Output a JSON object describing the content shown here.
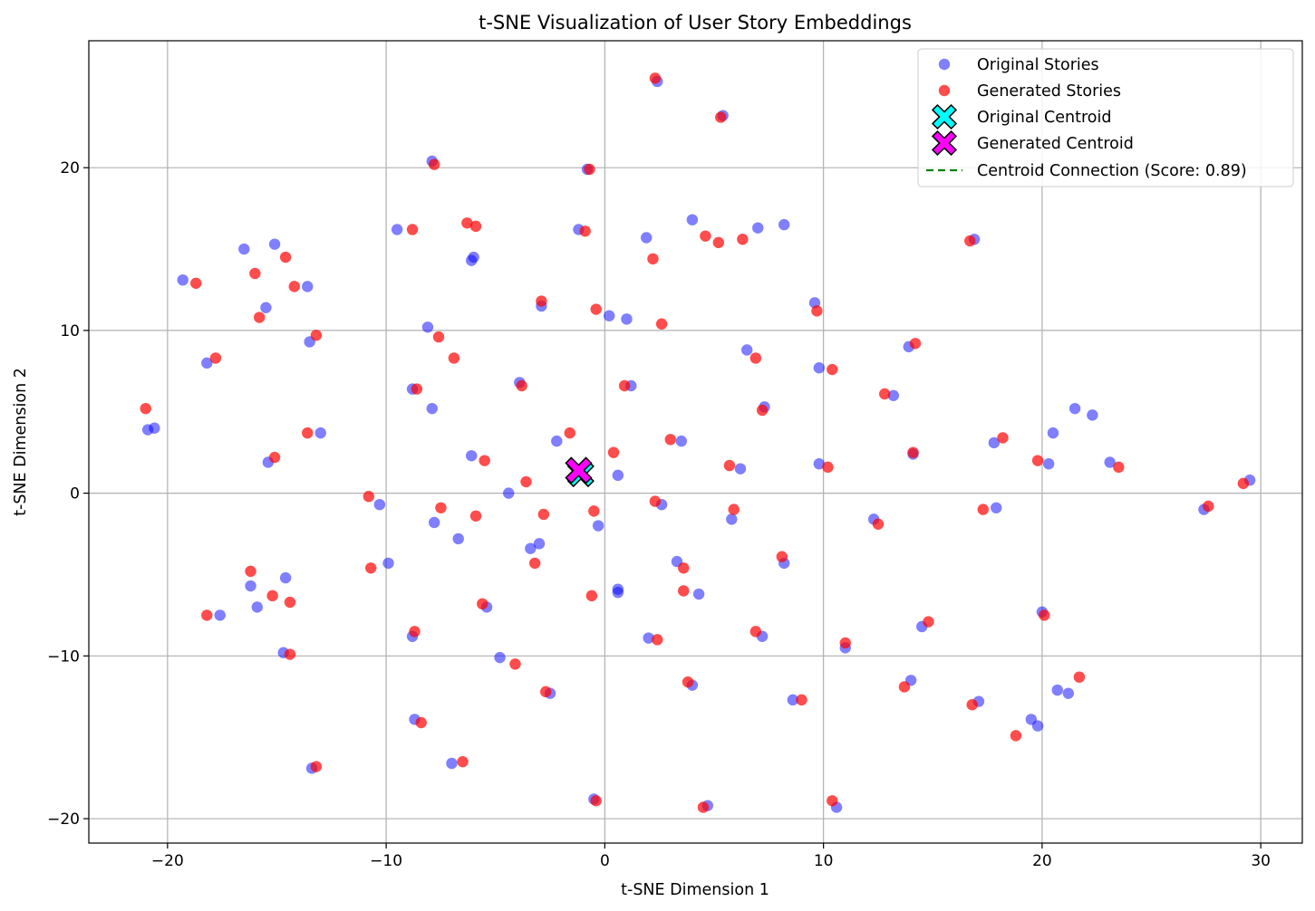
{
  "chart_data": {
    "type": "scatter",
    "title": "t-SNE Visualization of User Story Embeddings",
    "xlabel": "t-SNE Dimension 1",
    "ylabel": "t-SNE Dimension 2",
    "xlim": [
      -23.6,
      31.9
    ],
    "ylim": [
      -21.5,
      27.8
    ],
    "x_ticks": [
      -20,
      -10,
      0,
      10,
      20,
      30
    ],
    "y_ticks": [
      -20,
      -10,
      0,
      10,
      20
    ],
    "x_tick_labels": [
      "−20",
      "−10",
      "0",
      "10",
      "20",
      "30"
    ],
    "y_tick_labels": [
      "−20",
      "−10",
      "0",
      "10",
      "20"
    ],
    "grid": true,
    "legend_placement": "upper right",
    "series": [
      {
        "name": "Original Stories",
        "color": "#0000ff",
        "alpha": 0.5,
        "points": [
          [
            2.4,
            25.3
          ],
          [
            5.4,
            23.2
          ],
          [
            -7.9,
            20.4
          ],
          [
            -0.8,
            19.9
          ],
          [
            -9.5,
            16.2
          ],
          [
            -1.2,
            16.2
          ],
          [
            4.0,
            16.8
          ],
          [
            7.0,
            16.3
          ],
          [
            8.2,
            16.5
          ],
          [
            1.9,
            15.7
          ],
          [
            -6.0,
            14.5
          ],
          [
            -6.1,
            14.3
          ],
          [
            16.9,
            15.6
          ],
          [
            -16.5,
            15.0
          ],
          [
            -15.1,
            15.3
          ],
          [
            -19.3,
            13.1
          ],
          [
            -13.6,
            12.7
          ],
          [
            -15.5,
            11.4
          ],
          [
            -2.9,
            11.5
          ],
          [
            0.2,
            10.9
          ],
          [
            1.0,
            10.7
          ],
          [
            9.6,
            11.7
          ],
          [
            -8.1,
            10.2
          ],
          [
            -13.5,
            9.3
          ],
          [
            6.5,
            8.8
          ],
          [
            13.9,
            9.0
          ],
          [
            -18.2,
            8.0
          ],
          [
            9.8,
            7.7
          ],
          [
            -3.9,
            6.8
          ],
          [
            1.2,
            6.6
          ],
          [
            -8.8,
            6.4
          ],
          [
            -7.9,
            5.2
          ],
          [
            7.3,
            5.3
          ],
          [
            13.2,
            6.0
          ],
          [
            21.5,
            5.2
          ],
          [
            22.3,
            4.8
          ],
          [
            -20.6,
            4.0
          ],
          [
            -20.9,
            3.9
          ],
          [
            -13.0,
            3.7
          ],
          [
            20.5,
            3.7
          ],
          [
            17.8,
            3.1
          ],
          [
            3.5,
            3.2
          ],
          [
            -2.2,
            3.2
          ],
          [
            -6.1,
            2.3
          ],
          [
            -15.4,
            1.9
          ],
          [
            14.1,
            2.4
          ],
          [
            23.1,
            1.9
          ],
          [
            29.5,
            0.8
          ],
          [
            9.8,
            1.8
          ],
          [
            20.3,
            1.8
          ],
          [
            6.2,
            1.5
          ],
          [
            0.6,
            1.1
          ],
          [
            -4.4,
            0.0
          ],
          [
            -10.3,
            -0.7
          ],
          [
            2.6,
            -0.7
          ],
          [
            17.9,
            -0.9
          ],
          [
            27.4,
            -1.0
          ],
          [
            12.3,
            -1.6
          ],
          [
            5.8,
            -1.6
          ],
          [
            -7.8,
            -1.8
          ],
          [
            -0.3,
            -2.0
          ],
          [
            -6.7,
            -2.8
          ],
          [
            -3.4,
            -3.4
          ],
          [
            -3.0,
            -3.1
          ],
          [
            3.3,
            -4.2
          ],
          [
            8.2,
            -4.3
          ],
          [
            -9.9,
            -4.3
          ],
          [
            -16.2,
            -5.7
          ],
          [
            -14.6,
            -5.2
          ],
          [
            -15.9,
            -7.0
          ],
          [
            0.6,
            -5.9
          ],
          [
            0.6,
            -6.1
          ],
          [
            4.3,
            -6.2
          ],
          [
            -5.4,
            -7.0
          ],
          [
            -17.6,
            -7.5
          ],
          [
            20.0,
            -7.3
          ],
          [
            14.5,
            -8.2
          ],
          [
            7.2,
            -8.8
          ],
          [
            -8.8,
            -8.8
          ],
          [
            2.0,
            -8.9
          ],
          [
            11.0,
            -9.5
          ],
          [
            -14.7,
            -9.8
          ],
          [
            -4.8,
            -10.1
          ],
          [
            14.0,
            -11.5
          ],
          [
            4.0,
            -11.8
          ],
          [
            20.7,
            -12.1
          ],
          [
            21.2,
            -12.3
          ],
          [
            -2.5,
            -12.3
          ],
          [
            8.6,
            -12.7
          ],
          [
            17.1,
            -12.8
          ],
          [
            -8.7,
            -13.9
          ],
          [
            19.5,
            -13.9
          ],
          [
            19.8,
            -14.3
          ],
          [
            -7.0,
            -16.6
          ],
          [
            -13.4,
            -16.9
          ],
          [
            -0.5,
            -18.8
          ],
          [
            4.7,
            -19.2
          ],
          [
            10.6,
            -19.3
          ]
        ]
      },
      {
        "name": "Generated Stories",
        "color": "#ff0000",
        "alpha": 0.7,
        "points": [
          [
            2.3,
            25.5
          ],
          [
            5.3,
            23.1
          ],
          [
            -7.8,
            20.2
          ],
          [
            -0.7,
            19.9
          ],
          [
            -8.8,
            16.2
          ],
          [
            -0.9,
            16.1
          ],
          [
            -6.3,
            16.6
          ],
          [
            -5.9,
            16.4
          ],
          [
            4.6,
            15.8
          ],
          [
            5.2,
            15.4
          ],
          [
            6.3,
            15.6
          ],
          [
            16.7,
            15.5
          ],
          [
            2.2,
            14.4
          ],
          [
            -16.0,
            13.5
          ],
          [
            -14.6,
            14.5
          ],
          [
            -18.7,
            12.9
          ],
          [
            -14.2,
            12.7
          ],
          [
            -15.8,
            10.8
          ],
          [
            -2.9,
            11.8
          ],
          [
            -0.4,
            11.3
          ],
          [
            2.6,
            10.4
          ],
          [
            9.7,
            11.2
          ],
          [
            -7.6,
            9.6
          ],
          [
            -13.2,
            9.7
          ],
          [
            -17.8,
            8.3
          ],
          [
            -6.9,
            8.3
          ],
          [
            6.9,
            8.3
          ],
          [
            14.2,
            9.2
          ],
          [
            10.4,
            7.6
          ],
          [
            -3.8,
            6.6
          ],
          [
            0.9,
            6.6
          ],
          [
            -8.6,
            6.4
          ],
          [
            7.2,
            5.1
          ],
          [
            12.8,
            6.1
          ],
          [
            -21.0,
            5.2
          ],
          [
            -13.6,
            3.7
          ],
          [
            -1.6,
            3.7
          ],
          [
            3.0,
            3.3
          ],
          [
            18.2,
            3.4
          ],
          [
            0.4,
            2.5
          ],
          [
            -15.1,
            2.2
          ],
          [
            -5.5,
            2.0
          ],
          [
            14.1,
            2.5
          ],
          [
            19.8,
            2.0
          ],
          [
            23.5,
            1.6
          ],
          [
            29.2,
            0.6
          ],
          [
            5.7,
            1.7
          ],
          [
            10.2,
            1.6
          ],
          [
            -3.6,
            0.7
          ],
          [
            -10.8,
            -0.2
          ],
          [
            2.3,
            -0.5
          ],
          [
            -7.5,
            -0.9
          ],
          [
            5.9,
            -1.0
          ],
          [
            17.3,
            -1.0
          ],
          [
            27.6,
            -0.8
          ],
          [
            -0.5,
            -1.1
          ],
          [
            -5.9,
            -1.4
          ],
          [
            -2.8,
            -1.3
          ],
          [
            12.5,
            -1.9
          ],
          [
            -3.2,
            -4.3
          ],
          [
            8.1,
            -3.9
          ],
          [
            3.6,
            -4.6
          ],
          [
            -10.7,
            -4.6
          ],
          [
            -16.2,
            -4.8
          ],
          [
            3.6,
            -6.0
          ],
          [
            -0.6,
            -6.3
          ],
          [
            -15.2,
            -6.3
          ],
          [
            -14.4,
            -6.7
          ],
          [
            -5.6,
            -6.8
          ],
          [
            -18.2,
            -7.5
          ],
          [
            20.1,
            -7.5
          ],
          [
            14.8,
            -7.9
          ],
          [
            6.9,
            -8.5
          ],
          [
            -8.7,
            -8.5
          ],
          [
            2.4,
            -9.0
          ],
          [
            11.0,
            -9.2
          ],
          [
            -14.4,
            -9.9
          ],
          [
            -4.1,
            -10.5
          ],
          [
            3.8,
            -11.6
          ],
          [
            13.7,
            -11.9
          ],
          [
            21.7,
            -11.3
          ],
          [
            -2.7,
            -12.2
          ],
          [
            9.0,
            -12.7
          ],
          [
            16.8,
            -13.0
          ],
          [
            -8.4,
            -14.1
          ],
          [
            18.8,
            -14.9
          ],
          [
            -6.5,
            -16.5
          ],
          [
            -13.2,
            -16.8
          ],
          [
            -0.4,
            -18.9
          ],
          [
            4.5,
            -19.3
          ],
          [
            10.4,
            -18.9
          ]
        ]
      }
    ],
    "centroids": [
      {
        "name": "Original Centroid",
        "x": -1.1,
        "y": 1.2,
        "color": "#00ffff",
        "marker": "X"
      },
      {
        "name": "Generated Centroid",
        "x": -1.2,
        "y": 1.4,
        "color": "#ff00ff",
        "marker": "X"
      }
    ],
    "connection": {
      "name": "Centroid Connection (Score: 0.89)",
      "color": "#008000",
      "style": "dashed"
    },
    "legend": [
      "Original Stories",
      "Generated Stories",
      "Original Centroid",
      "Generated Centroid",
      "Centroid Connection (Score: 0.89)"
    ]
  }
}
